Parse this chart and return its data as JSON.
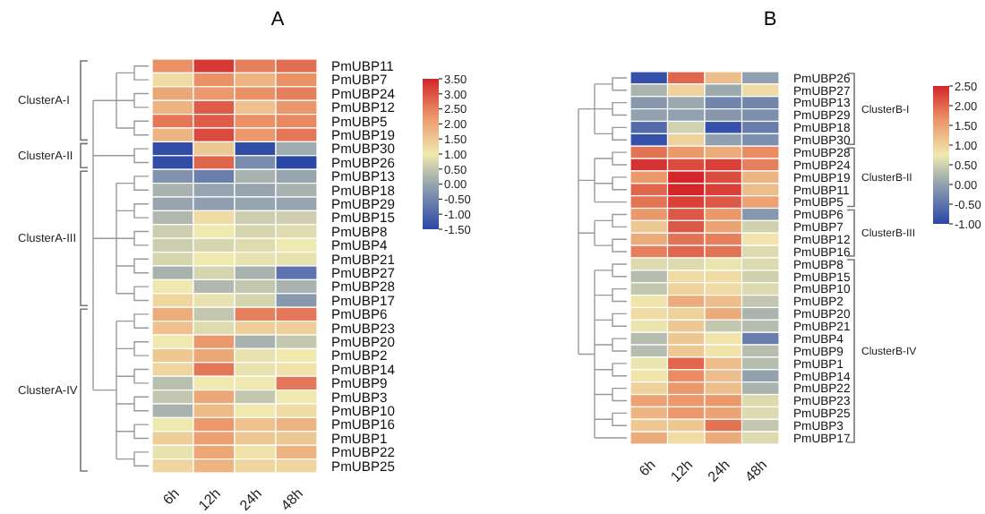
{
  "chart_data": [
    {
      "type": "heatmap",
      "title": "A",
      "categories": [
        "6h",
        "12h",
        "24h",
        "48h"
      ],
      "y_categories": [
        "PmUBP11",
        "PmUBP7",
        "PmUBP24",
        "PmUBP12",
        "PmUBP5",
        "PmUBP19",
        "PmUBP30",
        "PmUBP26",
        "PmUBP13",
        "PmUBP18",
        "PmUBP29",
        "PmUBP15",
        "PmUBP8",
        "PmUBP4",
        "PmUBP21",
        "PmUBP27",
        "PmUBP28",
        "PmUBP17",
        "PmUBP6",
        "PmUBP23",
        "PmUBP20",
        "PmUBP2",
        "PmUBP14",
        "PmUBP9",
        "PmUBP3",
        "PmUBP10",
        "PmUBP16",
        "PmUBP1",
        "PmUBP22",
        "PmUBP25"
      ],
      "cells": [
        [
          2.3,
          3.3,
          2.5,
          2.7
        ],
        [
          1.2,
          2.3,
          1.8,
          2.3
        ],
        [
          2.0,
          2.2,
          2.3,
          2.5
        ],
        [
          1.8,
          2.9,
          1.6,
          2.2
        ],
        [
          2.6,
          2.9,
          2.3,
          2.4
        ],
        [
          1.8,
          3.1,
          2.2,
          2.6
        ],
        [
          -1.4,
          1.5,
          -1.4,
          0.1
        ],
        [
          -1.4,
          2.8,
          -0.4,
          -1.5
        ],
        [
          -0.3,
          -0.6,
          0.2,
          0.0
        ],
        [
          0.2,
          0.0,
          0.0,
          0.2
        ],
        [
          0.0,
          -0.1,
          0.0,
          0.0
        ],
        [
          0.3,
          1.2,
          0.6,
          0.6
        ],
        [
          0.6,
          1.0,
          0.7,
          0.8
        ],
        [
          0.6,
          0.7,
          0.8,
          1.0
        ],
        [
          0.7,
          1.0,
          0.9,
          0.9
        ],
        [
          0.2,
          0.7,
          0.2,
          -0.8
        ],
        [
          1.0,
          0.3,
          0.5,
          0.2
        ],
        [
          1.3,
          0.9,
          0.7,
          -0.2
        ],
        [
          1.9,
          0.5,
          2.5,
          2.6
        ],
        [
          1.6,
          0.8,
          1.4,
          1.4
        ],
        [
          1.0,
          2.2,
          0.2,
          0.5
        ],
        [
          1.5,
          2.0,
          0.9,
          1.0
        ],
        [
          1.3,
          2.6,
          0.9,
          1.1
        ],
        [
          0.4,
          1.0,
          1.0,
          2.6
        ],
        [
          0.5,
          2.0,
          0.5,
          1.0
        ],
        [
          0.2,
          1.7,
          1.0,
          1.2
        ],
        [
          1.0,
          2.2,
          1.6,
          1.8
        ],
        [
          1.4,
          2.1,
          1.5,
          1.5
        ],
        [
          0.9,
          2.0,
          1.1,
          1.8
        ],
        [
          1.3,
          1.8,
          1.3,
          1.3
        ]
      ],
      "clim": [
        -1.5,
        3.5
      ],
      "cticks": [
        {
          "value": 3.5,
          "label": "3.50"
        },
        {
          "value": 3.0,
          "label": "3.00"
        },
        {
          "value": 2.5,
          "label": "2.50"
        },
        {
          "value": 2.0,
          "label": "2.00"
        },
        {
          "value": 1.5,
          "label": "1.50"
        },
        {
          "value": 1.0,
          "label": "1.00"
        },
        {
          "value": 0.5,
          "label": "0.50"
        },
        {
          "value": 0,
          "label": "0.00"
        },
        {
          "value": -0.5,
          "label": "-0.50"
        },
        {
          "value": -1.0,
          "label": "-1.00"
        },
        {
          "value": -1.5,
          "label": "-1.50"
        }
      ],
      "annotations": [
        "ClusterA-I",
        "ClusterA-II",
        "ClusterA-III",
        "ClusterA-IV"
      ]
    },
    {
      "type": "heatmap",
      "title": "B",
      "categories": [
        "6h",
        "12h",
        "24h",
        "48h"
      ],
      "y_categories": [
        "PmUBP26",
        "PmUBP27",
        "PmUBP13",
        "PmUBP29",
        "PmUBP18",
        "PmUBP30",
        "PmUBP28",
        "PmUBP24",
        "PmUBP19",
        "PmUBP11",
        "PmUBP5",
        "PmUBP6",
        "PmUBP7",
        "PmUBP12",
        "PmUBP16",
        "PmUBP8",
        "PmUBP15",
        "PmUBP10",
        "PmUBP2",
        "PmUBP20",
        "PmUBP21",
        "PmUBP4",
        "PmUBP9",
        "PmUBP1",
        "PmUBP14",
        "PmUBP22",
        "PmUBP23",
        "PmUBP25",
        "PmUBP3",
        "PmUBP17"
      ],
      "cells": [
        [
          -0.9,
          2.0,
          1.2,
          0.0
        ],
        [
          0.2,
          1.0,
          0.1,
          0.9
        ],
        [
          -0.1,
          0.1,
          -0.3,
          -0.3
        ],
        [
          0.0,
          0.0,
          -0.1,
          -0.2
        ],
        [
          -0.6,
          0.5,
          -0.9,
          -0.4
        ],
        [
          -0.9,
          1.0,
          0.0,
          -0.2
        ],
        [
          1.9,
          1.6,
          1.4,
          1.7
        ],
        [
          2.4,
          2.2,
          2.3,
          1.8
        ],
        [
          1.6,
          2.5,
          2.2,
          1.3
        ],
        [
          2.0,
          2.5,
          2.3,
          1.2
        ],
        [
          1.9,
          2.3,
          2.1,
          1.5
        ],
        [
          1.6,
          2.1,
          1.6,
          -0.1
        ],
        [
          1.1,
          2.1,
          1.5,
          0.5
        ],
        [
          1.4,
          1.9,
          1.8,
          0.8
        ],
        [
          1.8,
          2.0,
          1.9,
          0.6
        ],
        [
          0.6,
          0.6,
          0.7,
          0.6
        ],
        [
          0.3,
          0.9,
          0.9,
          0.5
        ],
        [
          0.4,
          1.0,
          0.9,
          0.6
        ],
        [
          0.8,
          1.4,
          1.2,
          0.4
        ],
        [
          0.9,
          1.0,
          1.4,
          0.2
        ],
        [
          0.7,
          1.1,
          0.4,
          0.3
        ],
        [
          0.3,
          1.1,
          0.8,
          -0.4
        ],
        [
          0.3,
          1.1,
          0.8,
          0.3
        ],
        [
          0.7,
          2.0,
          1.2,
          0.3
        ],
        [
          0.8,
          1.7,
          1.2,
          0.0
        ],
        [
          1.0,
          1.6,
          1.2,
          0.2
        ],
        [
          1.5,
          1.6,
          1.6,
          0.6
        ],
        [
          1.3,
          1.6,
          1.5,
          0.6
        ],
        [
          1.1,
          1.1,
          1.9,
          0.4
        ],
        [
          1.4,
          0.9,
          1.4,
          0.6
        ]
      ],
      "clim": [
        -1.0,
        2.5
      ],
      "cticks": [
        {
          "value": 2.5,
          "label": "2.50"
        },
        {
          "value": 2.0,
          "label": "2.00"
        },
        {
          "value": 1.5,
          "label": "1.50"
        },
        {
          "value": 1.0,
          "label": "1.00"
        },
        {
          "value": 0.5,
          "label": "0.50"
        },
        {
          "value": 0,
          "label": "0.00"
        },
        {
          "value": -0.5,
          "label": "-0.50"
        },
        {
          "value": -1.0,
          "label": "-1.00"
        }
      ],
      "annotations": [
        "ClusterB-I",
        "ClusterB-II",
        "ClusterB-III",
        "ClusterB-IV"
      ]
    }
  ]
}
